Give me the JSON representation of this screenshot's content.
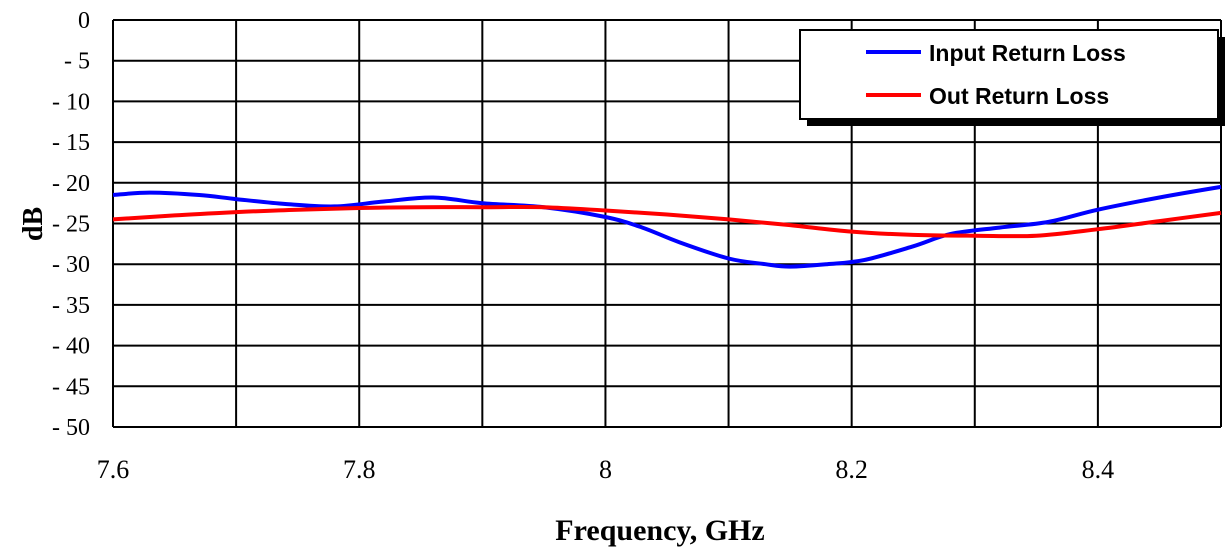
{
  "chart_data": {
    "type": "line",
    "xlabel": "Frequency, GHz",
    "ylabel": "dB",
    "xlim": [
      7.6,
      8.5
    ],
    "ylim": [
      -50,
      0
    ],
    "x_ticks": [
      7.6,
      7.8,
      8.0,
      8.2,
      8.4
    ],
    "x_tick_labels": [
      "7.6",
      "7.8",
      "8",
      "8.2",
      "8.4"
    ],
    "x_grid": [
      7.6,
      7.7,
      7.8,
      7.9,
      8.0,
      8.1,
      8.2,
      8.3,
      8.4,
      8.5
    ],
    "y_ticks": [
      0,
      -5,
      -10,
      -15,
      -20,
      -25,
      -30,
      -35,
      -40,
      -45,
      -50
    ],
    "y_tick_labels": [
      "0",
      "- 5",
      "- 10",
      "- 15",
      "- 20",
      "- 25",
      "- 30",
      "- 35",
      "- 40",
      "- 45",
      "- 50"
    ],
    "grid": true,
    "legend_position": "top-right",
    "series": [
      {
        "name": "Input Return Loss",
        "color": "#0000ff",
        "x": [
          7.6,
          7.63,
          7.67,
          7.7,
          7.74,
          7.78,
          7.82,
          7.86,
          7.9,
          7.95,
          8.0,
          8.03,
          8.06,
          8.1,
          8.13,
          8.15,
          8.18,
          8.21,
          8.25,
          8.28,
          8.32,
          8.36,
          8.4,
          8.45,
          8.5
        ],
        "y": [
          -21.5,
          -21.2,
          -21.5,
          -22.0,
          -22.6,
          -22.9,
          -22.3,
          -21.8,
          -22.5,
          -23.0,
          -24.2,
          -25.5,
          -27.3,
          -29.3,
          -30.0,
          -30.3,
          -30.0,
          -29.5,
          -27.8,
          -26.3,
          -25.5,
          -24.8,
          -23.3,
          -21.8,
          -20.5
        ]
      },
      {
        "name": "Out Return Loss",
        "color": "#ff0000",
        "x": [
          7.6,
          7.65,
          7.7,
          7.75,
          7.8,
          7.85,
          7.9,
          7.95,
          8.0,
          8.05,
          8.1,
          8.15,
          8.2,
          8.25,
          8.3,
          8.35,
          8.4,
          8.45,
          8.5
        ],
        "y": [
          -24.5,
          -24.0,
          -23.6,
          -23.3,
          -23.1,
          -23.0,
          -23.0,
          -23.0,
          -23.4,
          -23.9,
          -24.5,
          -25.2,
          -26.0,
          -26.4,
          -26.5,
          -26.5,
          -25.7,
          -24.7,
          -23.7
        ]
      }
    ]
  }
}
